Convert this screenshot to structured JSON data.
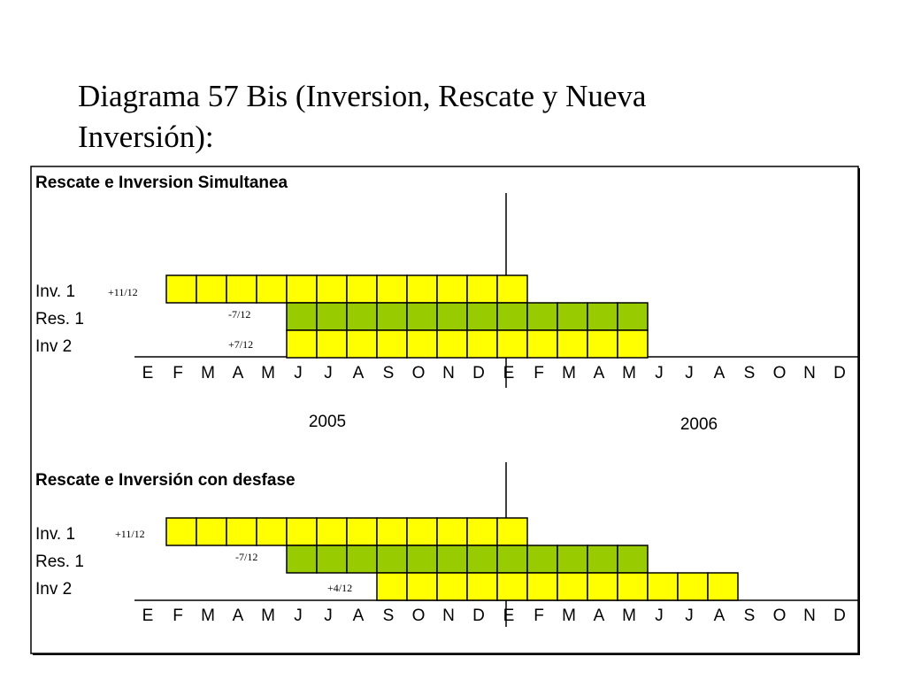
{
  "title": "Diagrama 57 Bis (Inversion, Rescate y Nueva Inversión):",
  "colors": {
    "yellow": "#ffff00",
    "green": "#99cc00",
    "line": "#000000"
  },
  "months": [
    "E",
    "F",
    "M",
    "A",
    "M",
    "J",
    "J",
    "A",
    "S",
    "O",
    "N",
    "D",
    "E",
    "F",
    "M",
    "A",
    "M",
    "J",
    "J",
    "A",
    "S",
    "O",
    "N",
    "D"
  ],
  "years": [
    "2005",
    "2006"
  ],
  "sections": [
    {
      "heading": "Rescate e Inversion Simultanea",
      "rows": [
        {
          "label": "Inv. 1",
          "note": "+11/12",
          "start": 1,
          "end": 12,
          "color": "yellow"
        },
        {
          "label": "Res. 1",
          "note": "-7/12",
          "start": 5,
          "end": 16,
          "color": "green"
        },
        {
          "label": "Inv 2",
          "note": "+7/12",
          "start": 5,
          "end": 16,
          "color": "yellow"
        }
      ]
    },
    {
      "heading": "Rescate e Inversión con desfase",
      "rows": [
        {
          "label": "Inv. 1",
          "note": "+11/12",
          "start": 1,
          "end": 12,
          "color": "yellow"
        },
        {
          "label": "Res. 1",
          "note": "-7/12",
          "start": 5,
          "end": 16,
          "color": "green"
        },
        {
          "label": "Inv 2",
          "note": "+4/12",
          "start": 8,
          "end": 19,
          "color": "yellow"
        }
      ]
    }
  ]
}
